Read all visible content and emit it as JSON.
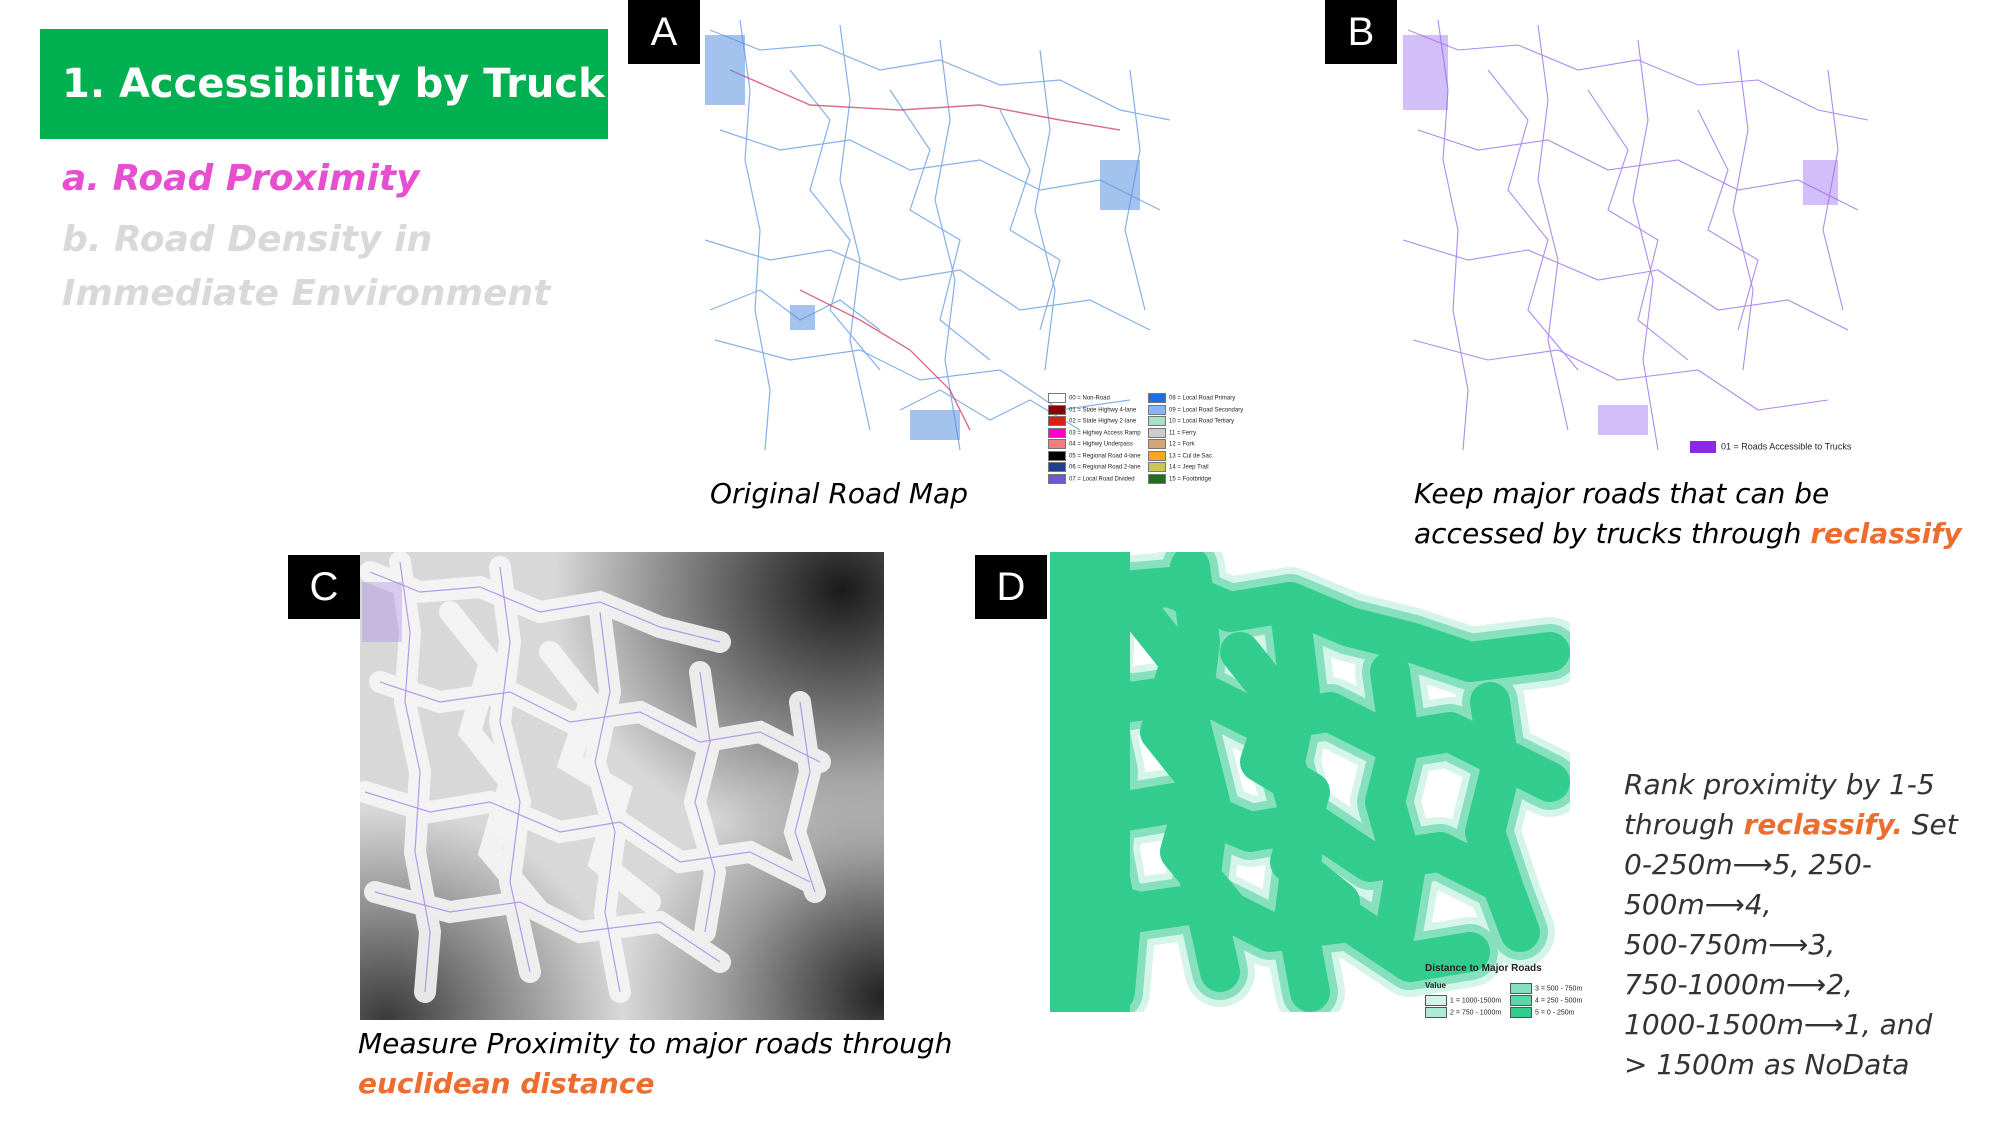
{
  "title": "1. Accessibility by Truck",
  "subtitles": {
    "a": "a. Road Proximity",
    "b_line1": "b. Road Density in",
    "b_line2": "Immediate Environment"
  },
  "panels": {
    "A": {
      "tag": "A",
      "caption": "Original Road Map",
      "legend": [
        {
          "label": "00 = Non-Road",
          "color": "#ffffff"
        },
        {
          "label": "01 = State Highwy 4-lane",
          "color": "#8b0000"
        },
        {
          "label": "02 = State Highwy 2-lane",
          "color": "#e31a1c"
        },
        {
          "label": "03 = Highwy Access Ramp",
          "color": "#ff00c8"
        },
        {
          "label": "04 = Highwy Underpass",
          "color": "#f08080"
        },
        {
          "label": "05 = Regional Road 4-lane",
          "color": "#000000"
        },
        {
          "label": "06 = Regional Road 2-lane",
          "color": "#1f3f8f"
        },
        {
          "label": "07 = Local Road Divided",
          "color": "#6a5acd"
        },
        {
          "label": "08 = Local Road Primary",
          "color": "#1e6fe0"
        },
        {
          "label": "09 = Local Road Secondary",
          "color": "#8ab4f8"
        },
        {
          "label": "10 = Local Road Tertiary",
          "color": "#a8e0c8"
        },
        {
          "label": "11 = Ferry",
          "color": "#cccccc"
        },
        {
          "label": "12 = Fork",
          "color": "#d2a679"
        },
        {
          "label": "13 = Cul de Sac",
          "color": "#f5a623"
        },
        {
          "label": "14 = Jeep Trail",
          "color": "#c8c850"
        },
        {
          "label": "15 = Footbridge",
          "color": "#1f6f1f"
        }
      ]
    },
    "B": {
      "tag": "B",
      "caption_line1": "Keep major roads that can be",
      "caption_line2_pre": "accessed by trucks through ",
      "caption_accent": "reclassify",
      "legend_label": "01 = Roads Accessible to Trucks",
      "legend_color": "#8a2be2"
    },
    "C": {
      "tag": "C",
      "caption_line1": "Measure Proximity to major roads through",
      "caption_accent": "euclidean distance"
    },
    "D": {
      "tag": "D",
      "legend_title": "Distance to Major Roads",
      "legend_value_label": "Value",
      "legend": [
        {
          "label": "1 = 1000-1500m",
          "color": "#d6f5ea"
        },
        {
          "label": "2 = 750 - 1000m",
          "color": "#aeebd5"
        },
        {
          "label": "3 = 500 - 750m",
          "color": "#86e0bd"
        },
        {
          "label": "4 = 250 - 500m",
          "color": "#5cd6a6"
        },
        {
          "label": "5 = 0 - 250m",
          "color": "#33cc8f"
        }
      ]
    }
  },
  "rank_text": {
    "line1": "Rank proximity by 1-5",
    "line2_pre": "through ",
    "line2_accent": "reclassify.",
    "line2_post": " Set",
    "line3": "0-250m⟶5, 250-500m⟶4,",
    "line4": "500-750m⟶3,",
    "line5": "750-1000m⟶2,",
    "line6": "1000-1500m⟶1, and",
    "line7": "> 1500m as NoData"
  },
  "colors": {
    "title_bg": "#00b050",
    "accent_orange": "#ed6d2e",
    "subtitle_pink": "#e54fd0",
    "subtitle_gray": "#d9d9d9",
    "road_blue": "#6fa3e6",
    "road_purple": "#9b6ef0",
    "proximity_green": "#33cc8f"
  }
}
